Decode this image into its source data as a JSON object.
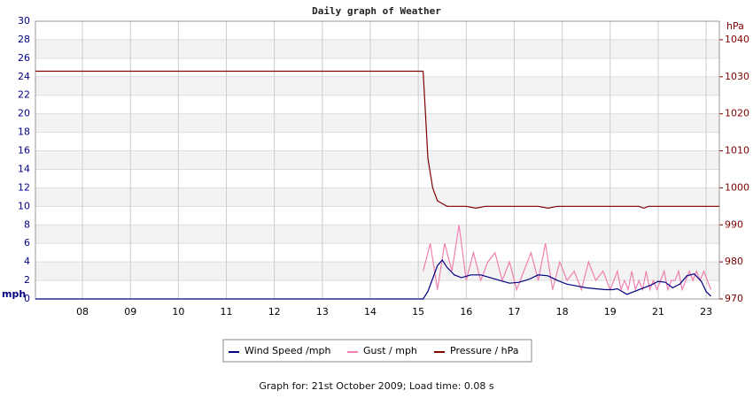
{
  "chart_data": {
    "type": "line",
    "title": "Daily graph of Weather",
    "ylabel": "mph",
    "y2label": "hPa",
    "footer": "Graph for: 21st October 2009; Load time: 0.08 s",
    "xlim": [
      7.02,
      23.55
    ],
    "xticks": [
      {
        "value": 8,
        "label": "08"
      },
      {
        "value": 9,
        "label": "09"
      },
      10,
      11,
      12,
      13,
      14,
      15,
      16,
      17,
      18,
      19,
      21,
      23
    ],
    "ylim": [
      0,
      30
    ],
    "yticks": [
      0,
      2,
      4,
      6,
      8,
      10,
      12,
      14,
      16,
      18,
      20,
      22,
      24,
      26,
      28,
      30
    ],
    "y2lim": [
      970,
      1045
    ],
    "y2ticks": [
      970,
      980,
      990,
      1000,
      1010,
      1020,
      1030,
      1040
    ],
    "grid": true,
    "legend": "bottom",
    "series": [
      {
        "name": "Wind Speed /mph",
        "color": "#000080",
        "x": [
          7.02,
          15.1,
          15.2,
          15.3,
          15.4,
          15.5,
          15.6,
          15.75,
          15.9,
          16.1,
          16.3,
          16.5,
          16.7,
          16.9,
          17.1,
          17.3,
          17.5,
          17.7,
          17.9,
          18.1,
          18.3,
          18.5,
          18.7,
          18.9,
          19.1,
          19.3,
          19.5,
          19.7,
          19.9,
          20.1,
          20.4,
          20.7,
          21,
          21.3,
          21.6,
          21.9,
          22.2,
          22.5,
          22.8,
          23.0,
          23.2
        ],
        "values": [
          0,
          0,
          0.8,
          2.2,
          3.6,
          4.2,
          3.4,
          2.6,
          2.3,
          2.6,
          2.6,
          2.3,
          2.0,
          1.7,
          1.8,
          2.1,
          2.6,
          2.5,
          2.0,
          1.6,
          1.4,
          1.2,
          1.1,
          1.0,
          1.0,
          1.1,
          0.8,
          0.5,
          0.7,
          0.9,
          1.2,
          1.5,
          1.9,
          1.8,
          1.2,
          1.6,
          2.5,
          2.7,
          1.9,
          0.8,
          0.3
        ]
      },
      {
        "name": "Gust / mph",
        "color": "#f080b0",
        "x": [
          15.1,
          15.25,
          15.4,
          15.55,
          15.7,
          15.85,
          16.0,
          16.15,
          16.3,
          16.45,
          16.6,
          16.75,
          16.9,
          17.05,
          17.2,
          17.35,
          17.5,
          17.65,
          17.8,
          17.95,
          18.1,
          18.25,
          18.4,
          18.55,
          18.7,
          18.85,
          19.0,
          19.15,
          19.3,
          19.45,
          19.6,
          19.75,
          19.9,
          20.05,
          20.2,
          20.35,
          20.5,
          20.65,
          20.8,
          20.95,
          21.1,
          21.25,
          21.4,
          21.55,
          21.7,
          21.85,
          22.0,
          22.15,
          22.3,
          22.45,
          22.6,
          22.75,
          22.9,
          23.05,
          23.2
        ],
        "values": [
          3,
          6,
          1,
          6,
          3,
          8,
          2,
          5,
          2,
          4,
          5,
          2,
          4,
          1,
          3,
          5,
          2,
          6,
          1,
          4,
          2,
          3,
          1,
          4,
          2,
          3,
          1,
          2,
          3,
          1,
          2,
          1,
          3,
          1,
          2,
          1,
          3,
          1,
          2,
          1,
          2,
          3,
          1,
          2,
          2,
          3,
          1,
          2,
          3,
          2,
          3,
          2,
          3,
          2,
          1
        ]
      },
      {
        "name": "Pressure / hPa",
        "color": "#800000",
        "axis": "y2",
        "x": [
          7.02,
          15.1,
          15.15,
          15.2,
          15.3,
          15.4,
          15.6,
          16.0,
          16.2,
          16.4,
          17.5,
          17.7,
          17.9,
          19.0,
          20.2,
          20.4,
          20.6,
          23.55
        ],
        "values": [
          1031.5,
          1031.5,
          1020,
          1008,
          1000,
          996.5,
          995,
          995,
          994.5,
          995,
          995,
          994.5,
          995,
          995,
          995,
          994.5,
          995,
          995
        ]
      }
    ]
  }
}
